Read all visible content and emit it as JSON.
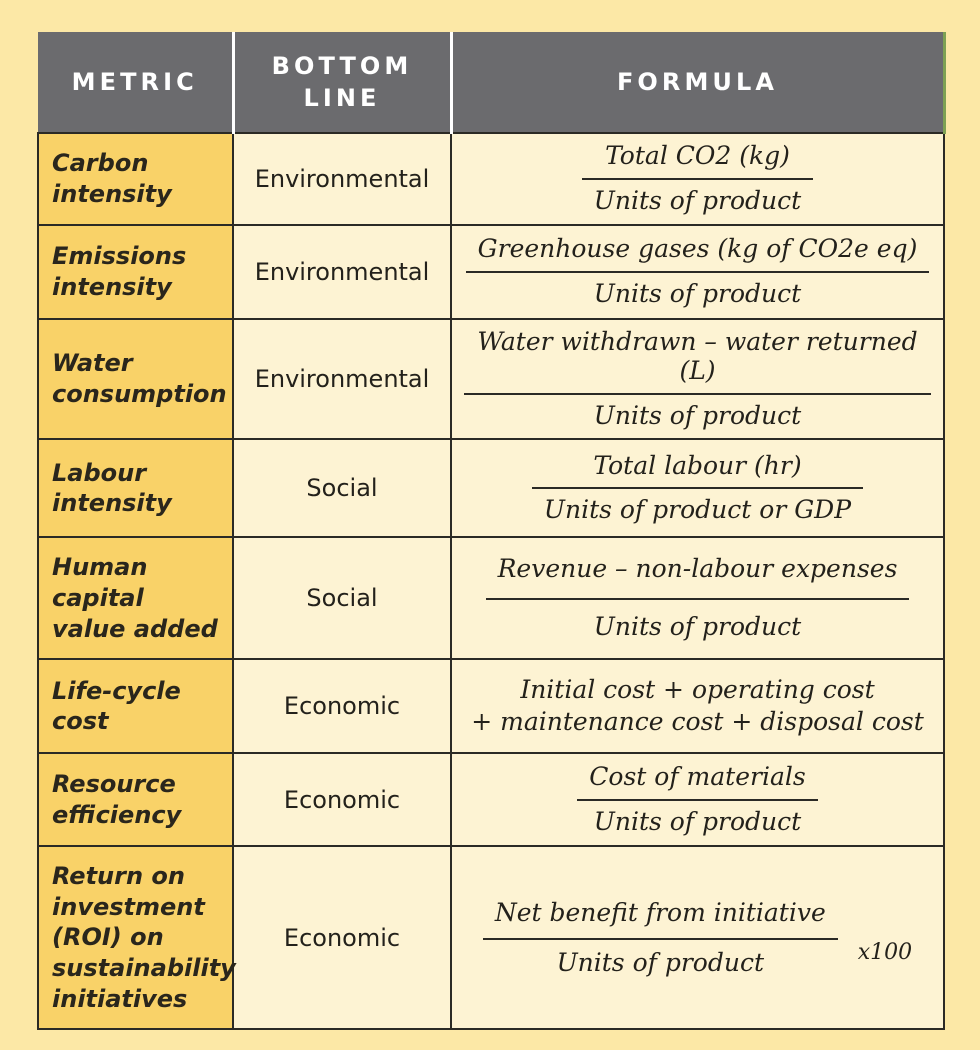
{
  "table": {
    "headers": [
      "METRIC",
      "BOTTOM LINE",
      "FORMULA"
    ],
    "rows": [
      {
        "metric": "Carbon intensity",
        "bottom_line": "Environmental",
        "formula": {
          "type": "fraction",
          "numerator": "Total CO2 (kg)",
          "denominator": "Units of product"
        }
      },
      {
        "metric": "Emissions intensity",
        "bottom_line": "Environmental",
        "formula": {
          "type": "fraction",
          "numerator": "Greenhouse gases (kg of CO2e eq)",
          "denominator": "Units of product"
        }
      },
      {
        "metric": "Water consumption",
        "bottom_line": "Environmental",
        "formula": {
          "type": "fraction",
          "numerator": "Water withdrawn – water returned (L)",
          "denominator": "Units of product"
        }
      },
      {
        "metric": "Labour intensity",
        "bottom_line": "Social",
        "formula": {
          "type": "fraction",
          "numerator": "Total labour (hr)",
          "denominator": "Units of product or GDP"
        }
      },
      {
        "metric": "Human capital value added",
        "bottom_line": "Social",
        "formula": {
          "type": "fraction",
          "numerator": "Revenue – non-labour expenses",
          "denominator": "Units of product"
        }
      },
      {
        "metric": "Life-cycle cost",
        "bottom_line": "Economic",
        "formula": {
          "type": "expression",
          "lines": [
            "Initial cost + operating cost",
            "+ maintenance cost + disposal cost"
          ]
        }
      },
      {
        "metric": "Resource efficiency",
        "bottom_line": "Economic",
        "formula": {
          "type": "fraction",
          "numerator": "Cost of materials",
          "denominator": "Units of product"
        }
      },
      {
        "metric": "Return on investment (ROI) on sustainability initiatives",
        "bottom_line": "Economic",
        "formula": {
          "type": "fraction",
          "numerator": "Net benefit from initiative",
          "denominator": "Units of product",
          "multiplier": "x100"
        }
      }
    ],
    "colors": {
      "page_background": "#fce8a6",
      "header_background": "#6b6b6e",
      "header_text": "#ffffff",
      "metric_column_background": "#f9d268",
      "cell_background": "#fdf3d3",
      "border": "#2b2a25",
      "header_green_edge": "#7ea153"
    }
  }
}
